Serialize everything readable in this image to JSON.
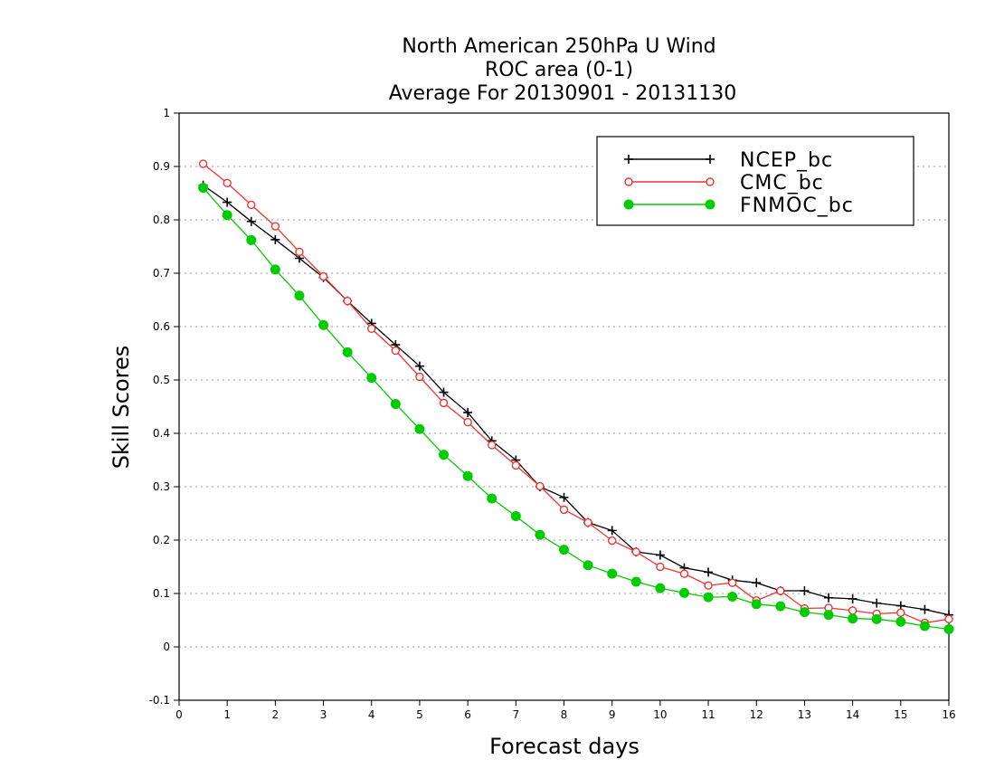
{
  "chart_data": {
    "type": "line",
    "title": [
      "North American 250hPa U Wind",
      "ROC area (0-1)",
      "Average For 20130901 - 20131130"
    ],
    "xlabel": "Forecast days",
    "ylabel": "Skill Scores",
    "xlim": [
      0,
      16
    ],
    "ylim": [
      -0.1,
      1
    ],
    "xticks": [
      "0",
      "1",
      "2",
      "3",
      "4",
      "5",
      "6",
      "7",
      "8",
      "9",
      "10",
      "11",
      "12",
      "13",
      "14",
      "15",
      "16"
    ],
    "yticks": [
      "-0.1",
      "0",
      "0.1",
      "0.2",
      "0.3",
      "0.4",
      "0.5",
      "0.6",
      "0.7",
      "0.8",
      "0.9",
      "1"
    ],
    "grid": true,
    "legend_position": "top-right",
    "x": [
      0.5,
      1,
      1.5,
      2,
      2.5,
      3,
      3.5,
      4,
      4.5,
      5,
      5.5,
      6,
      6.5,
      7,
      7.5,
      8,
      8.5,
      9,
      9.5,
      10,
      10.5,
      11,
      11.5,
      12,
      12.5,
      13,
      13.5,
      14,
      14.5,
      15,
      15.5,
      16
    ],
    "series": [
      {
        "name": "NCEP_bc",
        "color": "#000000",
        "marker": "plus",
        "values": [
          0.865,
          0.833,
          0.797,
          0.763,
          0.728,
          0.692,
          0.648,
          0.606,
          0.566,
          0.526,
          0.477,
          0.439,
          0.386,
          0.35,
          0.3,
          0.28,
          0.233,
          0.218,
          0.178,
          0.172,
          0.148,
          0.14,
          0.125,
          0.12,
          0.105,
          0.105,
          0.092,
          0.09,
          0.082,
          0.077,
          0.07,
          0.06
        ]
      },
      {
        "name": "CMC_bc",
        "color": "#ee3333",
        "marker": "open-circle",
        "values": [
          0.905,
          0.869,
          0.828,
          0.788,
          0.74,
          0.694,
          0.648,
          0.596,
          0.555,
          0.506,
          0.457,
          0.421,
          0.378,
          0.34,
          0.301,
          0.257,
          0.233,
          0.199,
          0.178,
          0.15,
          0.137,
          0.115,
          0.12,
          0.087,
          0.105,
          0.072,
          0.073,
          0.068,
          0.062,
          0.064,
          0.045,
          0.052
        ]
      },
      {
        "name": "FNMOC_bc",
        "color": "#00cc00",
        "marker": "filled-circle",
        "values": [
          0.86,
          0.809,
          0.762,
          0.707,
          0.658,
          0.603,
          0.552,
          0.504,
          0.455,
          0.408,
          0.36,
          0.32,
          0.278,
          0.245,
          0.21,
          0.182,
          0.153,
          0.137,
          0.122,
          0.11,
          0.101,
          0.093,
          0.094,
          0.08,
          0.076,
          0.065,
          0.06,
          0.053,
          0.052,
          0.047,
          0.039,
          0.033
        ]
      }
    ]
  }
}
